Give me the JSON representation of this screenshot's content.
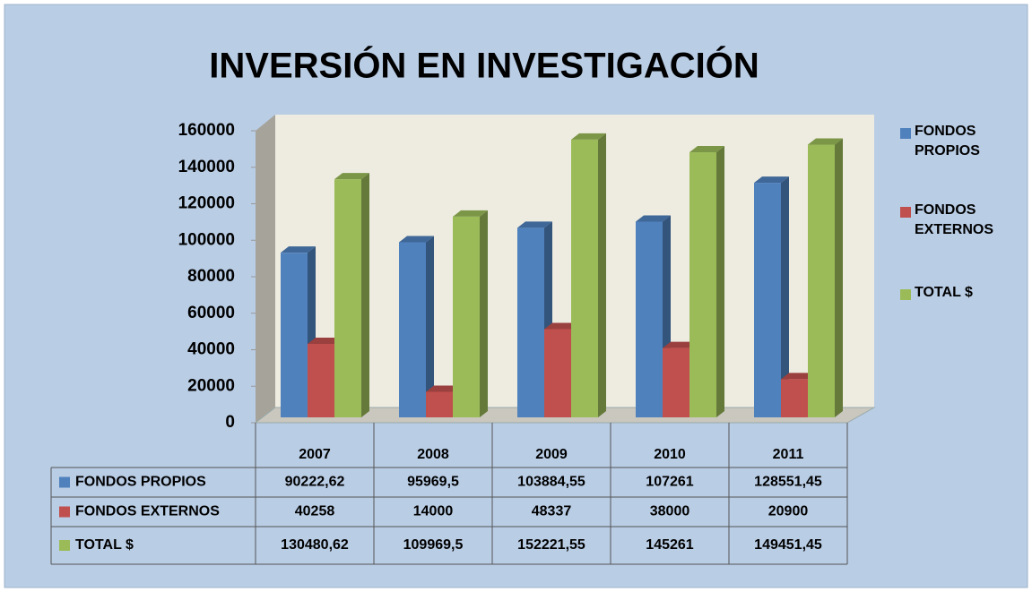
{
  "chart_data": {
    "type": "bar3d",
    "title": "INVERSIÓN EN INVESTIGACIÓN",
    "categories": [
      "2007",
      "2008",
      "2009",
      "2010",
      "2011"
    ],
    "series": [
      {
        "name": "FONDOS PROPIOS",
        "color": "#4f81bd",
        "values": [
          90222.62,
          95969.5,
          103884.55,
          107261,
          128551.45
        ],
        "value_labels": [
          "90222,62",
          "95969,5",
          "103884,55",
          "107261",
          "128551,45"
        ]
      },
      {
        "name": "FONDOS EXTERNOS",
        "color": "#c0504d",
        "values": [
          40258,
          14000,
          48337,
          38000,
          20900
        ],
        "value_labels": [
          "40258",
          "14000",
          "48337",
          "38000",
          "20900"
        ]
      },
      {
        "name": "TOTAL  $",
        "color": "#9bbb59",
        "values": [
          130480.62,
          109969.5,
          152221.55,
          145261,
          149451.45
        ],
        "value_labels": [
          "130480,62",
          "109969,5",
          "152221,55",
          "145261",
          "149451,45"
        ]
      }
    ],
    "ylim": [
      0,
      160000
    ],
    "yticks": [
      0,
      20000,
      40000,
      60000,
      80000,
      100000,
      120000,
      140000,
      160000
    ],
    "legend": "right"
  }
}
